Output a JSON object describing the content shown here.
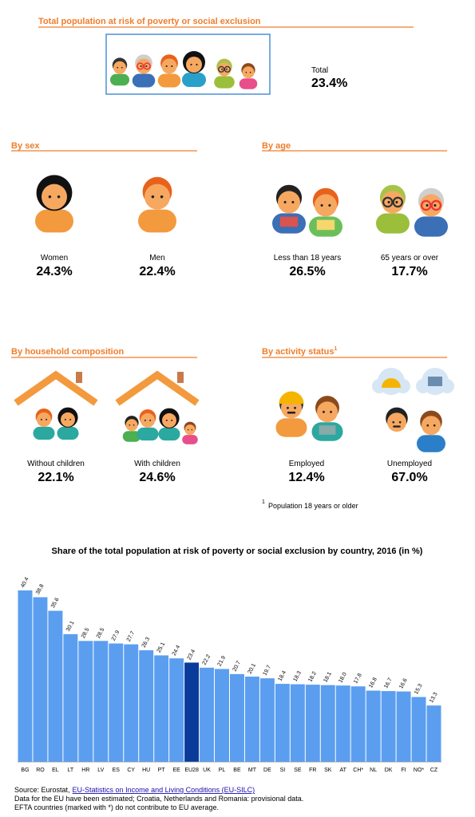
{
  "header": {
    "title": "Total population at risk of poverty or social exclusion",
    "total_label": "Total",
    "total_value": "23.4%"
  },
  "by_sex": {
    "title": "By sex",
    "items": [
      {
        "label": "Women",
        "value": "24.3%"
      },
      {
        "label": "Men",
        "value": "22.4%"
      }
    ]
  },
  "by_age": {
    "title": "By age",
    "items": [
      {
        "label": "Less than 18 years",
        "value": "26.5%"
      },
      {
        "label": "65 years or over",
        "value": "17.7%"
      }
    ]
  },
  "by_household": {
    "title": "By household composition",
    "items": [
      {
        "label": "Without children",
        "value": "22.1%"
      },
      {
        "label": "With children",
        "value": "24.6%"
      }
    ]
  },
  "by_activity": {
    "title": "By activity status",
    "footnote_mark": "1",
    "items": [
      {
        "label": "Employed",
        "value": "12.4%"
      },
      {
        "label": "Unemployed",
        "value": "67.0%"
      }
    ]
  },
  "footnote": {
    "mark": "1",
    "text": "Population 18 years or older"
  },
  "chart_data": {
    "type": "bar",
    "title": "Share of the total population at risk of poverty or social exclusion by country, 2016 (in %)",
    "categories": [
      "BG",
      "RO",
      "EL",
      "LT",
      "HR",
      "LV",
      "ES",
      "CY",
      "HU",
      "PT",
      "EE",
      "EU28",
      "UK",
      "PL",
      "BE",
      "MT",
      "DE",
      "SI",
      "SE",
      "FR",
      "SK",
      "AT",
      "CH*",
      "NL",
      "DK",
      "FI",
      "NO*",
      "CZ"
    ],
    "values": [
      40.4,
      38.8,
      35.6,
      30.1,
      28.5,
      28.5,
      27.9,
      27.7,
      26.3,
      25.1,
      24.4,
      23.4,
      22.2,
      21.9,
      20.7,
      20.1,
      19.7,
      18.4,
      18.3,
      18.2,
      18.1,
      18.0,
      17.8,
      16.8,
      16.7,
      16.6,
      15.3,
      13.3
    ],
    "value_labels": [
      "40.4",
      "38.8",
      "35.6",
      "30.1",
      "28.5",
      "28.5",
      "27.9",
      "27.7",
      "26.3",
      "25.1",
      "24.4",
      "23.4",
      "22.2",
      "21.9",
      "20.7",
      "20.1",
      "19.7",
      "18.4",
      "18.3",
      "18.2",
      "18.1",
      "18.0",
      "17.8",
      "16.8",
      "16.7",
      "16.6",
      "15.3",
      "13.3"
    ],
    "colors": [
      "#5b9ef0",
      "#5b9ef0",
      "#5b9ef0",
      "#5b9ef0",
      "#5b9ef0",
      "#5b9ef0",
      "#5b9ef0",
      "#5b9ef0",
      "#5b9ef0",
      "#5b9ef0",
      "#5b9ef0",
      "#0a3a9a",
      "#5b9ef0",
      "#5b9ef0",
      "#5b9ef0",
      "#5b9ef0",
      "#5b9ef0",
      "#5b9ef0",
      "#5b9ef0",
      "#5b9ef0",
      "#5b9ef0",
      "#5b9ef0",
      "#5b9ef0",
      "#5b9ef0",
      "#5b9ef0",
      "#5b9ef0",
      "#5b9ef0",
      "#5b9ef0"
    ]
  },
  "source": {
    "prefix": "Source: Eurostat,",
    "link": "EU-Statistics on Income and Living Conditions (EU-SILC)",
    "lines": [
      "Data for the EU have been estimated; Croatia, Netherlands and Romania: provisional data.",
      "EFTA countries (marked with *) do not contribute to EU average."
    ]
  }
}
